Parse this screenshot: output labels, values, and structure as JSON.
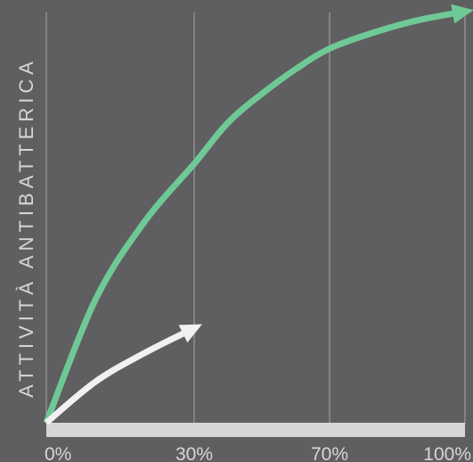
{
  "chart_data": {
    "type": "line",
    "xlabel": "",
    "ylabel": "ATTIVITÀ ANTIBATTERICA",
    "x_ticks": [
      "0%",
      "30%",
      "70%",
      "100%"
    ],
    "x_tick_values": [
      0,
      30,
      70,
      100
    ],
    "xlim": [
      0,
      100
    ],
    "grid": true,
    "legend": "none",
    "series": [
      {
        "color": "#6fc996",
        "style": "arrow",
        "x": [
          0,
          10,
          20,
          30,
          40,
          50,
          60,
          70,
          80,
          90,
          100
        ],
        "y": [
          0,
          0.3,
          0.49,
          0.63,
          0.73,
          0.8,
          0.86,
          0.91,
          0.95,
          0.98,
          1.0
        ]
      },
      {
        "color": "#f2f0f2",
        "style": "arrow",
        "x": [
          0,
          10,
          20,
          30
        ],
        "y": [
          0,
          0.1,
          0.17,
          0.23
        ]
      }
    ],
    "colors": {
      "background": "#5f5e60",
      "grid": "#a8a6a9",
      "baseline": "#d7d5d7",
      "text": "#d7d5d7"
    }
  }
}
